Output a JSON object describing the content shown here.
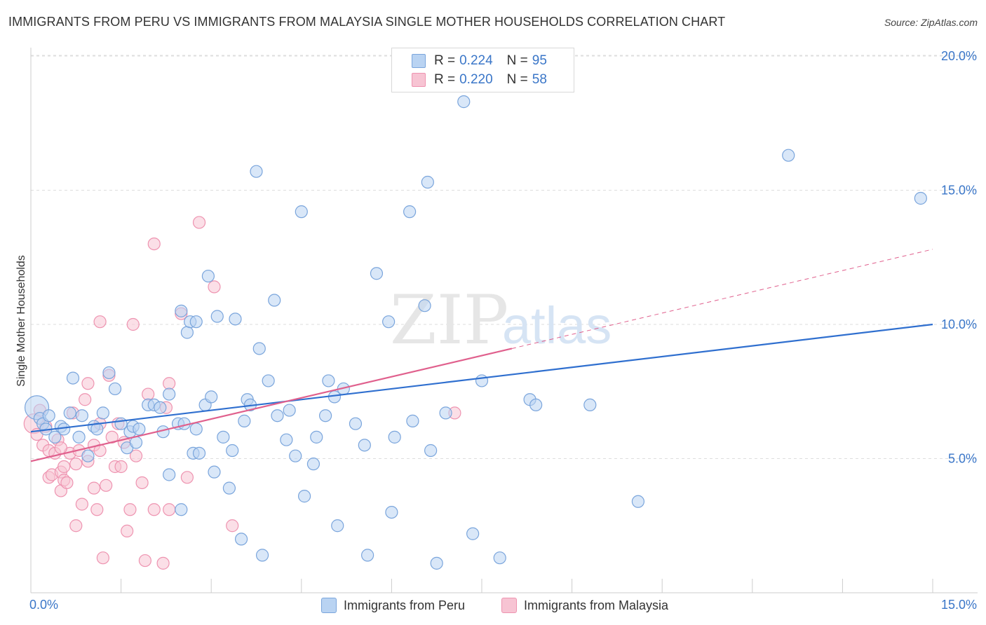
{
  "title": "IMMIGRANTS FROM PERU VS IMMIGRANTS FROM MALAYSIA SINGLE MOTHER HOUSEHOLDS CORRELATION CHART",
  "source": "Source: ZipAtlas.com",
  "watermark": {
    "zip": "ZIP",
    "atlas": "atlas"
  },
  "legend": {
    "rows": [
      {
        "r_label": "R =",
        "r_value": "0.224",
        "n_label": "N =",
        "n_value": "95"
      },
      {
        "r_label": "R =",
        "r_value": "0.220",
        "n_label": "N =",
        "n_value": "58"
      }
    ]
  },
  "bottom_legend": [
    {
      "label": "Immigrants from Peru"
    },
    {
      "label": "Immigrants from Malaysia"
    }
  ],
  "colors": {
    "peru_fill": "#b9d3f2",
    "peru_stroke": "#7aa5dc",
    "peru_line": "#2f6fcf",
    "malaysia_fill": "#f7c4d3",
    "malaysia_stroke": "#ee93b0",
    "malaysia_line": "#e0608d",
    "axis_text": "#3a76c8",
    "grid": "#dddddd"
  },
  "chart_data": {
    "type": "scatter",
    "title": "IMMIGRANTS FROM PERU VS IMMIGRANTS FROM MALAYSIA SINGLE MOTHER HOUSEHOLDS CORRELATION CHART",
    "xlabel": "",
    "ylabel": "Single Mother Households",
    "xlim": [
      0,
      15
    ],
    "ylim": [
      0,
      20.5
    ],
    "x_tick_labels": [
      "0.0%",
      "15.0%"
    ],
    "y_ticks": [
      5,
      10,
      15,
      20
    ],
    "y_tick_labels": [
      "5.0%",
      "10.0%",
      "15.0%",
      "20.0%"
    ],
    "series": [
      {
        "name": "Immigrants from Peru",
        "r": 0.224,
        "n": 95,
        "trend": {
          "x0": 0,
          "y0": 6.0,
          "x1": 15,
          "y1": 10.0
        },
        "points": [
          [
            0.1,
            6.9
          ],
          [
            0.15,
            6.5
          ],
          [
            0.2,
            6.3
          ],
          [
            0.25,
            6.1
          ],
          [
            0.3,
            6.6
          ],
          [
            0.4,
            5.8
          ],
          [
            0.5,
            6.2
          ],
          [
            0.55,
            6.1
          ],
          [
            0.65,
            6.7
          ],
          [
            0.7,
            8.0
          ],
          [
            0.8,
            5.8
          ],
          [
            0.85,
            6.6
          ],
          [
            0.95,
            5.1
          ],
          [
            1.05,
            6.2
          ],
          [
            1.1,
            6.1
          ],
          [
            1.2,
            6.7
          ],
          [
            1.3,
            8.2
          ],
          [
            1.4,
            7.6
          ],
          [
            1.5,
            6.3
          ],
          [
            1.6,
            5.4
          ],
          [
            1.65,
            6.0
          ],
          [
            1.7,
            6.2
          ],
          [
            1.75,
            5.6
          ],
          [
            1.8,
            6.1
          ],
          [
            1.95,
            7.0
          ],
          [
            2.05,
            7.0
          ],
          [
            2.15,
            6.9
          ],
          [
            2.2,
            6.0
          ],
          [
            2.3,
            7.4
          ],
          [
            2.3,
            4.4
          ],
          [
            2.45,
            6.3
          ],
          [
            2.55,
            6.3
          ],
          [
            2.5,
            10.5
          ],
          [
            2.6,
            9.7
          ],
          [
            2.5,
            3.1
          ],
          [
            2.7,
            5.2
          ],
          [
            2.75,
            6.1
          ],
          [
            2.65,
            10.1
          ],
          [
            2.75,
            10.1
          ],
          [
            2.8,
            5.2
          ],
          [
            2.9,
            7.0
          ],
          [
            2.95,
            11.8
          ],
          [
            3.0,
            7.3
          ],
          [
            3.05,
            4.5
          ],
          [
            3.1,
            10.3
          ],
          [
            3.2,
            5.8
          ],
          [
            3.3,
            3.9
          ],
          [
            3.35,
            5.3
          ],
          [
            3.4,
            10.2
          ],
          [
            3.5,
            2.0
          ],
          [
            3.55,
            6.4
          ],
          [
            3.6,
            7.2
          ],
          [
            3.65,
            7.0
          ],
          [
            3.75,
            15.7
          ],
          [
            3.8,
            9.1
          ],
          [
            3.85,
            1.4
          ],
          [
            3.95,
            7.9
          ],
          [
            4.05,
            10.9
          ],
          [
            4.1,
            6.6
          ],
          [
            4.25,
            5.7
          ],
          [
            4.3,
            6.8
          ],
          [
            4.4,
            5.1
          ],
          [
            4.5,
            14.2
          ],
          [
            4.55,
            3.6
          ],
          [
            4.7,
            4.8
          ],
          [
            4.75,
            5.8
          ],
          [
            4.9,
            6.6
          ],
          [
            4.95,
            7.9
          ],
          [
            5.05,
            7.3
          ],
          [
            5.1,
            2.5
          ],
          [
            5.2,
            7.6
          ],
          [
            5.4,
            6.3
          ],
          [
            5.55,
            5.5
          ],
          [
            5.6,
            1.4
          ],
          [
            5.75,
            11.9
          ],
          [
            5.95,
            10.1
          ],
          [
            6.0,
            3.0
          ],
          [
            6.05,
            5.8
          ],
          [
            6.3,
            14.2
          ],
          [
            6.35,
            6.4
          ],
          [
            6.55,
            10.7
          ],
          [
            6.6,
            15.3
          ],
          [
            6.65,
            5.3
          ],
          [
            6.75,
            1.1
          ],
          [
            6.9,
            6.7
          ],
          [
            7.2,
            18.3
          ],
          [
            7.35,
            2.2
          ],
          [
            7.5,
            7.9
          ],
          [
            7.8,
            1.3
          ],
          [
            8.3,
            7.2
          ],
          [
            8.4,
            7.0
          ],
          [
            9.3,
            7.0
          ],
          [
            10.1,
            3.4
          ],
          [
            12.6,
            16.3
          ],
          [
            14.8,
            14.7
          ]
        ]
      },
      {
        "name": "Immigrants from Malaysia",
        "r": 0.22,
        "n": 58,
        "trend": {
          "x0": 0,
          "y0": 4.9,
          "x1": 8.0,
          "y1": 9.1,
          "dashed_to_x": 15,
          "dashed_to_y": 12.8
        },
        "points": [
          [
            0.05,
            6.3
          ],
          [
            0.1,
            5.9
          ],
          [
            0.15,
            6.8
          ],
          [
            0.2,
            5.5
          ],
          [
            0.25,
            6.2
          ],
          [
            0.3,
            5.3
          ],
          [
            0.3,
            4.3
          ],
          [
            0.35,
            4.4
          ],
          [
            0.4,
            5.2
          ],
          [
            0.45,
            5.7
          ],
          [
            0.5,
            4.5
          ],
          [
            0.5,
            3.8
          ],
          [
            0.55,
            4.7
          ],
          [
            0.55,
            4.2
          ],
          [
            0.6,
            4.1
          ],
          [
            0.65,
            5.2
          ],
          [
            0.7,
            6.7
          ],
          [
            0.75,
            4.8
          ],
          [
            0.75,
            2.5
          ],
          [
            0.8,
            5.3
          ],
          [
            0.85,
            3.3
          ],
          [
            0.9,
            7.2
          ],
          [
            0.95,
            7.8
          ],
          [
            0.95,
            4.9
          ],
          [
            1.05,
            5.5
          ],
          [
            1.05,
            3.9
          ],
          [
            1.1,
            3.1
          ],
          [
            1.15,
            6.3
          ],
          [
            1.15,
            10.1
          ],
          [
            1.2,
            1.3
          ],
          [
            1.25,
            4.0
          ],
          [
            1.3,
            8.1
          ],
          [
            1.35,
            5.8
          ],
          [
            1.4,
            4.7
          ],
          [
            1.45,
            6.3
          ],
          [
            1.5,
            4.7
          ],
          [
            1.55,
            5.6
          ],
          [
            1.6,
            2.3
          ],
          [
            1.65,
            3.1
          ],
          [
            1.7,
            10.0
          ],
          [
            1.75,
            5.1
          ],
          [
            1.85,
            4.1
          ],
          [
            1.9,
            1.2
          ],
          [
            1.95,
            7.4
          ],
          [
            2.05,
            13.0
          ],
          [
            2.05,
            3.1
          ],
          [
            2.2,
            1.1
          ],
          [
            2.25,
            6.9
          ],
          [
            2.3,
            3.1
          ],
          [
            2.3,
            7.8
          ],
          [
            2.5,
            10.4
          ],
          [
            2.6,
            4.3
          ],
          [
            2.8,
            13.8
          ],
          [
            3.05,
            11.4
          ],
          [
            3.35,
            2.5
          ],
          [
            7.05,
            6.7
          ],
          [
            0.5,
            5.4
          ],
          [
            1.15,
            5.3
          ]
        ]
      }
    ]
  }
}
